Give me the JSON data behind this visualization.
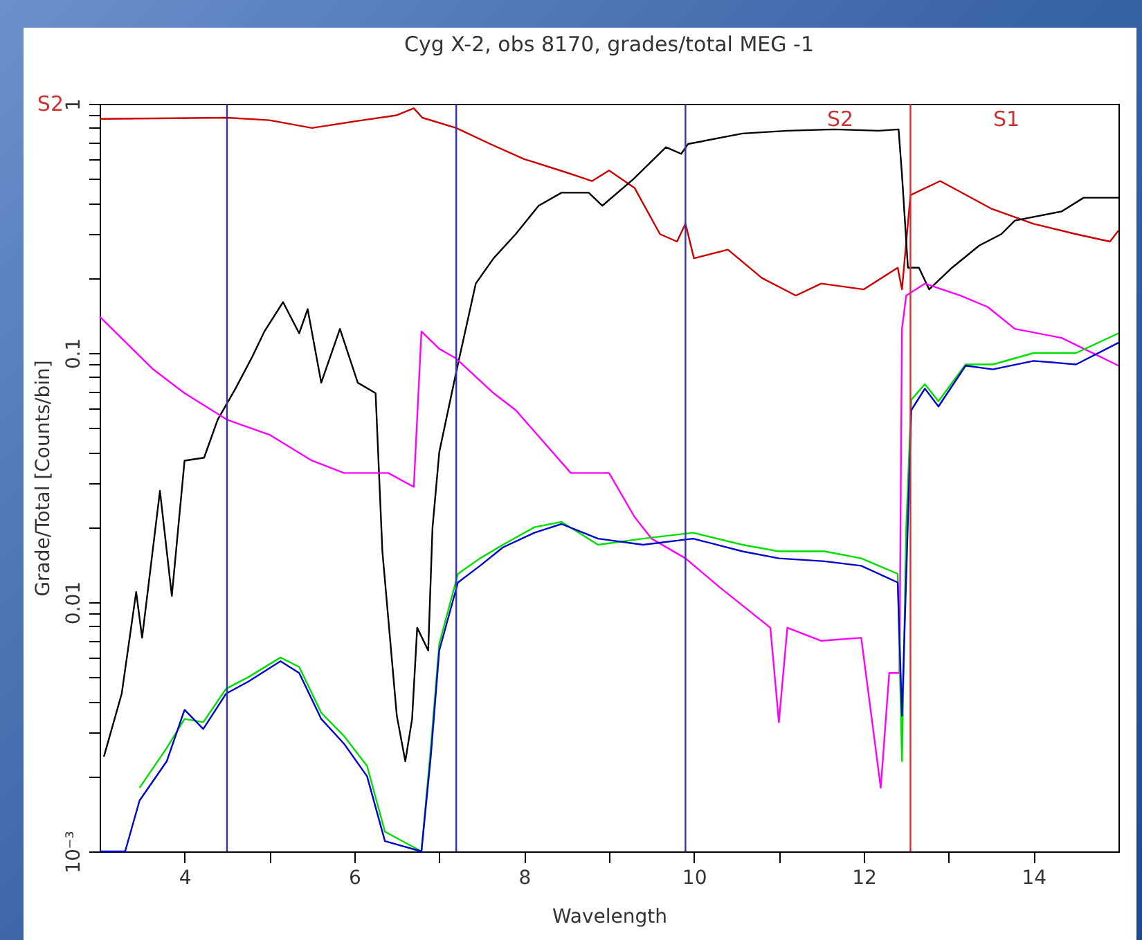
{
  "chart_data": {
    "type": "line",
    "title": "Cyg X-2, obs 8170, grades/total MEG -1",
    "xlabel": "Wavelength",
    "ylabel": "Grade/Total [Counts/bin]",
    "log": "y",
    "grid": false,
    "xlim": [
      3,
      15
    ],
    "xticks": [
      4,
      {
        "value": 5,
        "label": null
      },
      6,
      {
        "value": 7,
        "label": null
      },
      8,
      {
        "value": 9,
        "label": null
      },
      10,
      {
        "value": 11,
        "label": null
      },
      12,
      {
        "value": 13,
        "label": null
      },
      14
    ],
    "ylim": [
      0.001,
      1
    ],
    "yticks": [
      {
        "value": 0.001,
        "label": "10⁻³"
      },
      {
        "value": 0.002,
        "label": null
      },
      {
        "value": 0.003,
        "label": null
      },
      {
        "value": 0.004,
        "label": null
      },
      {
        "value": 0.005,
        "label": null
      },
      {
        "value": 0.006,
        "label": null
      },
      {
        "value": 0.007,
        "label": null
      },
      {
        "value": 0.008,
        "label": null
      },
      {
        "value": 0.009,
        "label": null
      },
      0.01,
      {
        "value": 0.02,
        "label": null
      },
      {
        "value": 0.03,
        "label": null
      },
      {
        "value": 0.04,
        "label": null
      },
      {
        "value": 0.05,
        "label": null
      },
      {
        "value": 0.06,
        "label": null
      },
      {
        "value": 0.07,
        "label": null
      },
      {
        "value": 0.08,
        "label": null
      },
      {
        "value": 0.09,
        "label": null
      },
      0.1,
      {
        "value": 0.2,
        "label": null
      },
      {
        "value": 0.3,
        "label": null
      },
      {
        "value": 0.4,
        "label": null
      },
      {
        "value": 0.5,
        "label": null
      },
      {
        "value": 0.6,
        "label": null
      },
      {
        "value": 0.7,
        "label": null
      },
      {
        "value": 0.8,
        "label": null
      },
      {
        "value": 0.9,
        "label": null
      },
      1
    ],
    "series": [
      {
        "color": "#cc0000",
        "x": [
          3.0,
          4.5,
          5.0,
          5.5,
          6.0,
          6.5,
          6.7,
          6.8,
          7.2,
          7.6,
          8.0,
          8.5,
          8.8,
          9.0,
          9.3,
          9.6,
          9.8,
          9.9,
          10.0,
          10.4,
          10.8,
          11.2,
          11.5,
          12.0,
          12.4,
          12.45,
          12.55,
          12.9,
          13.5,
          14.0,
          14.5,
          14.9,
          15.0
        ],
        "values": [
          0.87,
          0.88,
          0.86,
          0.8,
          0.85,
          0.9,
          0.96,
          0.88,
          0.8,
          0.69,
          0.6,
          0.53,
          0.49,
          0.54,
          0.46,
          0.3,
          0.28,
          0.33,
          0.24,
          0.26,
          0.2,
          0.17,
          0.19,
          0.18,
          0.22,
          0.18,
          0.43,
          0.49,
          0.38,
          0.33,
          0.3,
          0.28,
          0.31
        ]
      },
      {
        "color": "#000000",
        "x": [
          3.05,
          3.26,
          3.43,
          3.5,
          3.71,
          3.85,
          4.0,
          4.23,
          4.39,
          4.6,
          4.8,
          4.94,
          5.16,
          5.35,
          5.45,
          5.61,
          5.83,
          6.04,
          6.25,
          6.33,
          6.5,
          6.6,
          6.68,
          6.74,
          6.87,
          6.92,
          7.0,
          7.2,
          7.43,
          7.64,
          7.9,
          8.17,
          8.44,
          8.76,
          8.92,
          9.29,
          9.67,
          9.85,
          9.93,
          10.57,
          11.1,
          11.65,
          12.18,
          12.41,
          12.45,
          12.52,
          12.65,
          12.77,
          13.04,
          13.36,
          13.62,
          13.78,
          14.33,
          14.59,
          15.0
        ],
        "values": [
          0.0024,
          0.0043,
          0.011,
          0.0072,
          0.028,
          0.0106,
          0.037,
          0.038,
          0.054,
          0.072,
          0.097,
          0.122,
          0.16,
          0.12,
          0.15,
          0.076,
          0.125,
          0.076,
          0.069,
          0.016,
          0.0035,
          0.0023,
          0.0034,
          0.0079,
          0.0064,
          0.0198,
          0.04,
          0.084,
          0.19,
          0.24,
          0.3,
          0.39,
          0.44,
          0.44,
          0.39,
          0.5,
          0.67,
          0.63,
          0.69,
          0.76,
          0.78,
          0.79,
          0.78,
          0.79,
          0.52,
          0.22,
          0.22,
          0.18,
          0.22,
          0.27,
          0.3,
          0.34,
          0.37,
          0.42,
          0.42
        ]
      },
      {
        "color": "#ff00ff",
        "x": [
          3.0,
          3.63,
          4.0,
          4.5,
          5.0,
          5.5,
          5.88,
          6.4,
          6.7,
          6.79,
          7.0,
          7.2,
          7.64,
          7.9,
          8.55,
          9.0,
          9.3,
          9.5,
          9.9,
          10.3,
          10.9,
          11.0,
          11.1,
          11.5,
          11.97,
          12.2,
          12.3,
          12.42,
          12.45,
          12.5,
          12.72,
          13.14,
          13.46,
          13.78,
          14.33,
          15.0
        ],
        "values": [
          0.14,
          0.086,
          0.069,
          0.054,
          0.047,
          0.037,
          0.033,
          0.033,
          0.029,
          0.122,
          0.104,
          0.095,
          0.069,
          0.059,
          0.033,
          0.033,
          0.022,
          0.018,
          0.015,
          0.0115,
          0.0079,
          0.0033,
          0.0079,
          0.007,
          0.0072,
          0.0018,
          0.0052,
          0.0052,
          0.125,
          0.17,
          0.19,
          0.17,
          0.153,
          0.125,
          0.115,
          0.089
        ]
      },
      {
        "color": "#00dd00",
        "x": [
          3.47,
          3.79,
          4.0,
          4.22,
          4.49,
          4.75,
          5.13,
          5.35,
          5.61,
          5.88,
          6.15,
          6.36,
          6.79,
          6.9,
          7.0,
          7.22,
          7.48,
          7.75,
          8.12,
          8.44,
          8.87,
          9.4,
          9.99,
          10.57,
          11.0,
          11.54,
          11.97,
          12.4,
          12.45,
          12.5,
          12.56,
          12.72,
          12.88,
          13.2,
          13.52,
          14.0,
          14.5,
          15.0
        ],
        "values": [
          0.0018,
          0.0026,
          0.0034,
          0.0033,
          0.0045,
          0.005,
          0.006,
          0.0055,
          0.0036,
          0.0029,
          0.0022,
          0.0012,
          0.001,
          0.0026,
          0.0068,
          0.013,
          0.015,
          0.017,
          0.02,
          0.021,
          0.017,
          0.018,
          0.019,
          0.017,
          0.016,
          0.016,
          0.015,
          0.013,
          0.0023,
          0.02,
          0.065,
          0.075,
          0.064,
          0.09,
          0.09,
          0.1,
          0.1,
          0.12
        ]
      },
      {
        "color": "#0000cc",
        "x": [
          3.0,
          3.3,
          3.47,
          3.79,
          4.0,
          4.22,
          4.49,
          4.75,
          5.13,
          5.35,
          5.61,
          5.88,
          6.15,
          6.36,
          6.79,
          6.9,
          7.0,
          7.22,
          7.48,
          7.75,
          8.12,
          8.44,
          8.87,
          9.4,
          9.99,
          10.57,
          11.0,
          11.54,
          11.97,
          12.4,
          12.45,
          12.56,
          12.72,
          12.88,
          13.2,
          13.52,
          14.0,
          14.5,
          15.0
        ],
        "values": [
          0.001,
          0.001,
          0.0016,
          0.0023,
          0.0037,
          0.0031,
          0.0043,
          0.0048,
          0.0058,
          0.0052,
          0.0034,
          0.0027,
          0.002,
          0.0011,
          0.001,
          0.0024,
          0.0064,
          0.012,
          0.014,
          0.0166,
          0.019,
          0.0206,
          0.018,
          0.017,
          0.018,
          0.016,
          0.015,
          0.0146,
          0.014,
          0.012,
          0.0035,
          0.059,
          0.072,
          0.061,
          0.089,
          0.086,
          0.093,
          0.09,
          0.11
        ]
      }
    ],
    "ref_lines": [
      {
        "axis": "x",
        "value": 4.5,
        "color": "#3333aa"
      },
      {
        "axis": "x",
        "value": 7.2,
        "color": "#3333aa"
      },
      {
        "axis": "x",
        "value": 9.9,
        "color": "#3333aa"
      },
      {
        "axis": "x",
        "value": 12.55,
        "color": "#cc3333"
      }
    ],
    "annotations": [
      "S2",
      "S2",
      "S1"
    ]
  }
}
